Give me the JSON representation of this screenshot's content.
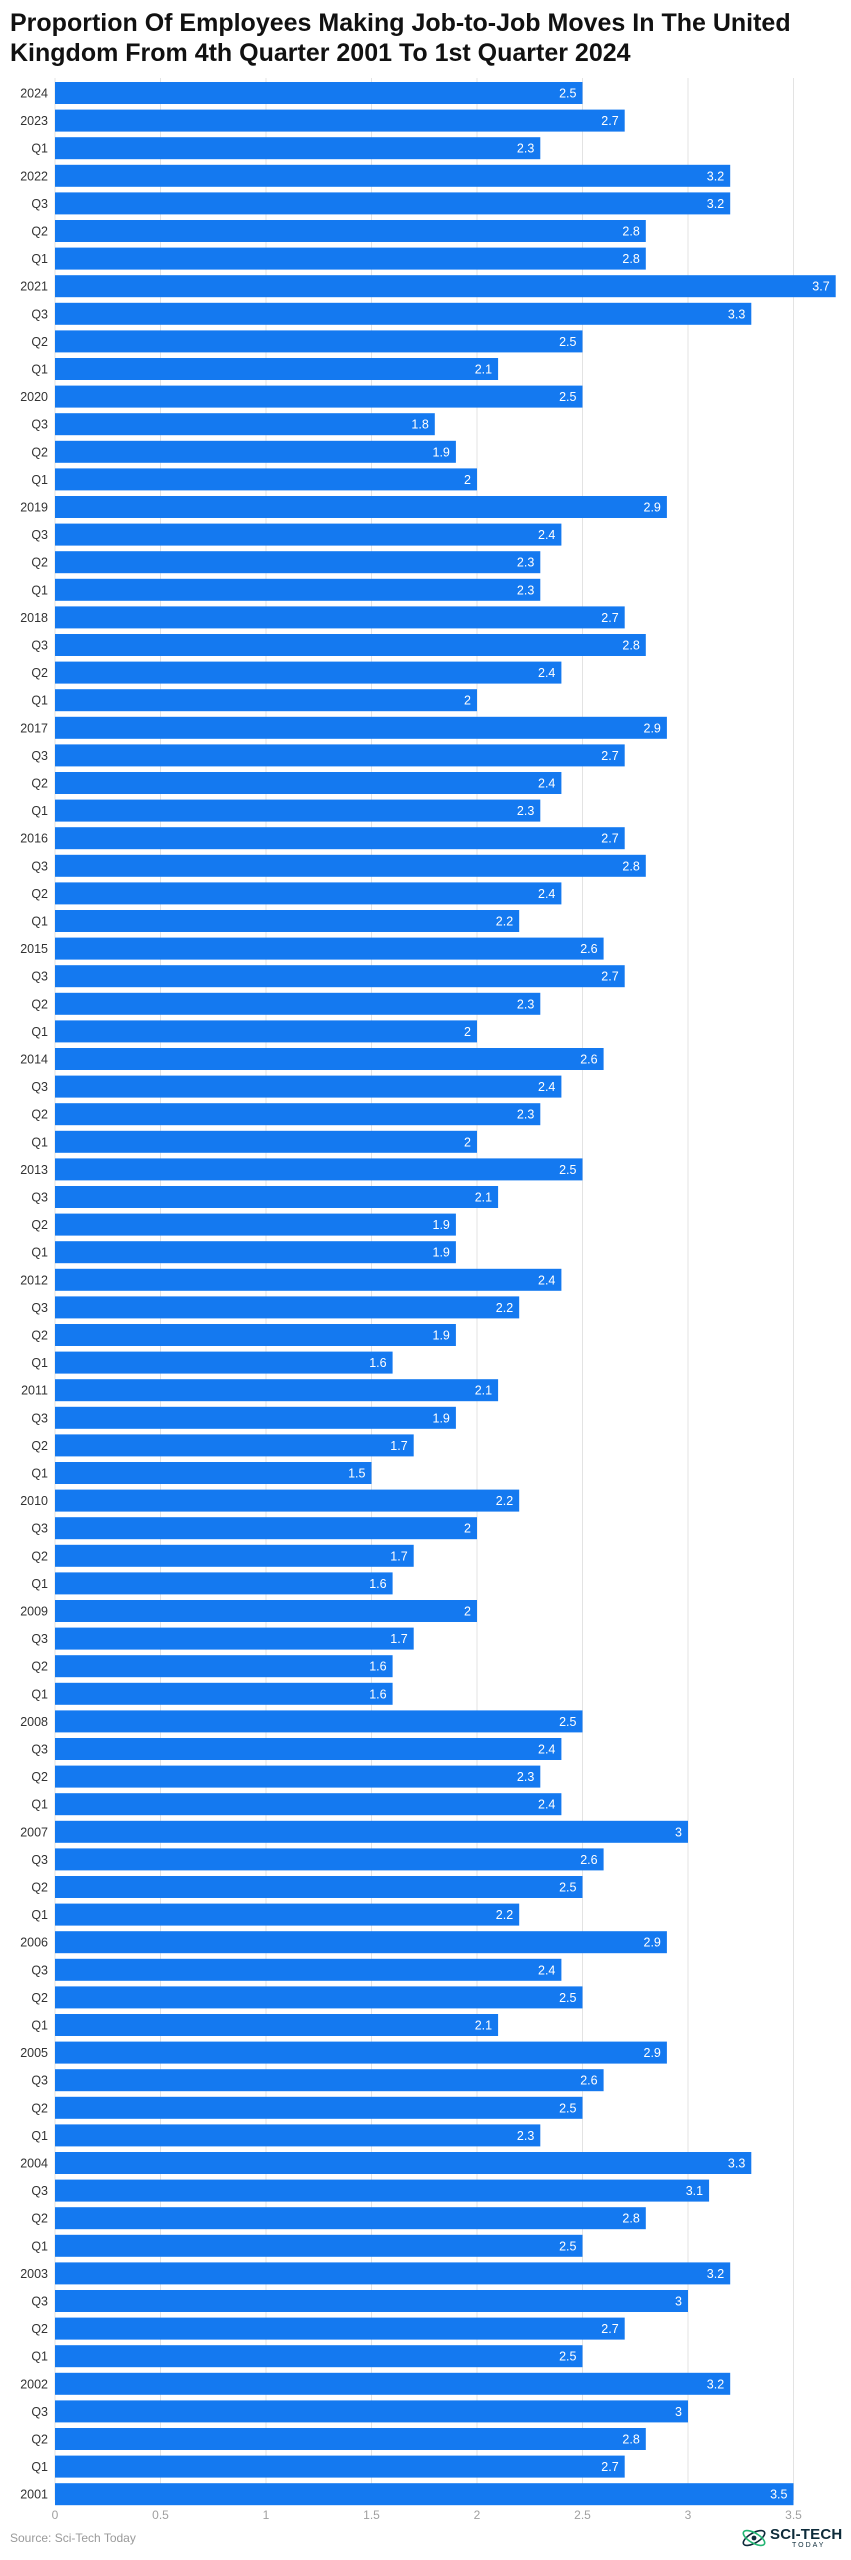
{
  "chart_data": {
    "type": "bar",
    "orientation": "horizontal",
    "title": "Proportion Of Employees Making Job-to-Job Moves In The United Kingdom From 4th Quarter 2001 To 1st Quarter 2024",
    "xlabel": "",
    "ylabel": "",
    "xlim": [
      0,
      3.7
    ],
    "x_ticks": [
      0,
      0.5,
      1,
      1.5,
      2,
      2.5,
      3,
      3.5
    ],
    "grid": true,
    "data_labels": true,
    "categories": [
      "2024",
      "2023",
      "Q1",
      "2022",
      "Q3",
      "Q2",
      "Q1",
      "2021",
      "Q3",
      "Q2",
      "Q1",
      "2020",
      "Q3",
      "Q2",
      "Q1",
      "2019",
      "Q3",
      "Q2",
      "Q1",
      "2018",
      "Q3",
      "Q2",
      "Q1",
      "2017",
      "Q3",
      "Q2",
      "Q1",
      "2016",
      "Q3",
      "Q2",
      "Q1",
      "2015",
      "Q3",
      "Q2",
      "Q1",
      "2014",
      "Q3",
      "Q2",
      "Q1",
      "2013",
      "Q3",
      "Q2",
      "Q1",
      "2012",
      "Q3",
      "Q2",
      "Q1",
      "2011",
      "Q3",
      "Q2",
      "Q1",
      "2010",
      "Q3",
      "Q2",
      "Q1",
      "2009",
      "Q3",
      "Q2",
      "Q1",
      "2008",
      "Q3",
      "Q2",
      "Q1",
      "2007",
      "Q3",
      "Q2",
      "Q1",
      "2006",
      "Q3",
      "Q2",
      "Q1",
      "2005",
      "Q3",
      "Q2",
      "Q1",
      "2004",
      "Q3",
      "Q2",
      "Q1",
      "2003",
      "Q3",
      "Q2",
      "Q1",
      "2002",
      "Q3",
      "Q2",
      "Q1",
      "2001"
    ],
    "values": [
      2.5,
      2.7,
      2.3,
      3.2,
      3.2,
      2.8,
      2.8,
      3.7,
      3.3,
      2.5,
      2.1,
      2.5,
      1.8,
      1.9,
      2,
      2.9,
      2.4,
      2.3,
      2.3,
      2.7,
      2.8,
      2.4,
      2,
      2.9,
      2.7,
      2.4,
      2.3,
      2.7,
      2.8,
      2.4,
      2.2,
      2.6,
      2.7,
      2.3,
      2,
      2.6,
      2.4,
      2.3,
      2,
      2.5,
      2.1,
      1.9,
      1.9,
      2.4,
      2.2,
      1.9,
      1.6,
      2.1,
      1.9,
      1.7,
      1.5,
      2.2,
      2,
      1.7,
      1.6,
      2,
      1.7,
      1.6,
      1.6,
      2.5,
      2.4,
      2.3,
      2.4,
      3,
      2.6,
      2.5,
      2.2,
      2.9,
      2.4,
      2.5,
      2.1,
      2.9,
      2.6,
      2.5,
      2.3,
      3.3,
      3.1,
      2.8,
      2.5,
      3.2,
      3,
      2.7,
      2.5,
      3.2,
      3,
      2.8,
      2.7,
      3.5
    ]
  },
  "colors": {
    "bar": "#1479f0",
    "grid": "#e3e3e3",
    "category_text": "#333333",
    "tick_text": "#a0a0a0",
    "value_text": "#ffffff"
  },
  "footer": {
    "source": "Source: Sci-Tech Today",
    "brand_name": "SCI-TECH",
    "brand_sub": "TODAY"
  }
}
